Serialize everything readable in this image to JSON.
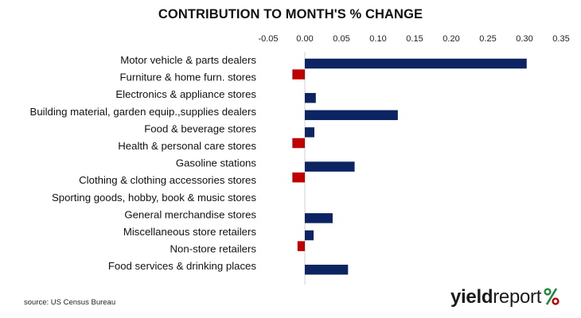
{
  "chart_data": {
    "type": "bar",
    "orientation": "horizontal",
    "title": "CONTRIBUTION TO MONTH'S % CHANGE",
    "categories": [
      "Motor vehicle & parts dealers",
      "Furniture & home furn. stores",
      "Electronics & appliance stores",
      "Building material, garden equip.,supplies dealers",
      "Food & beverage stores",
      "Health & personal care stores",
      "Gasoline stations",
      "Clothing & clothing accessories stores",
      "Sporting goods, hobby, book & music stores",
      "General merchandise stores",
      "Miscellaneous store retailers",
      "Non-store retailers",
      "Food services & drinking places"
    ],
    "values": [
      0.303,
      -0.017,
      0.015,
      0.127,
      0.013,
      -0.017,
      0.068,
      -0.017,
      0.0,
      0.038,
      0.012,
      -0.01,
      0.059
    ],
    "x_ticks": [
      "-0.05",
      "0.00",
      "0.05",
      "0.10",
      "0.15",
      "0.20",
      "0.25",
      "0.30",
      "0.35"
    ],
    "xlim": [
      -0.05,
      0.35
    ],
    "x_axis_position": "top",
    "grid": false,
    "legend": "none",
    "colors": {
      "positive": "#0c2461",
      "negative": "#c00000"
    }
  },
  "source": "source: US Census Bureau",
  "brand": {
    "part1": "yield",
    "part2": "report",
    "symbol": "%",
    "color_green": "#1e8a3c",
    "color_red": "#c00000"
  }
}
